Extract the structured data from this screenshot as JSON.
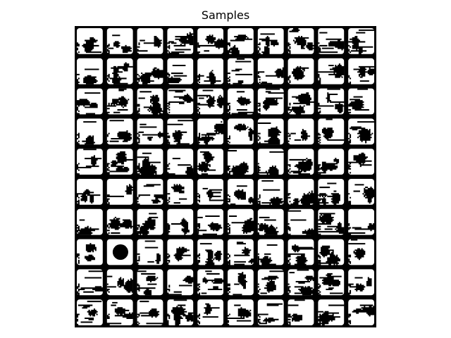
{
  "figure": {
    "title": "Samples"
  },
  "grid": {
    "rows": 10,
    "cols": 10,
    "ink_color": "#000000",
    "paper_color": "#ffffff",
    "special_cells": [
      {
        "row": 7,
        "col": 1,
        "kind": "disc"
      }
    ]
  }
}
